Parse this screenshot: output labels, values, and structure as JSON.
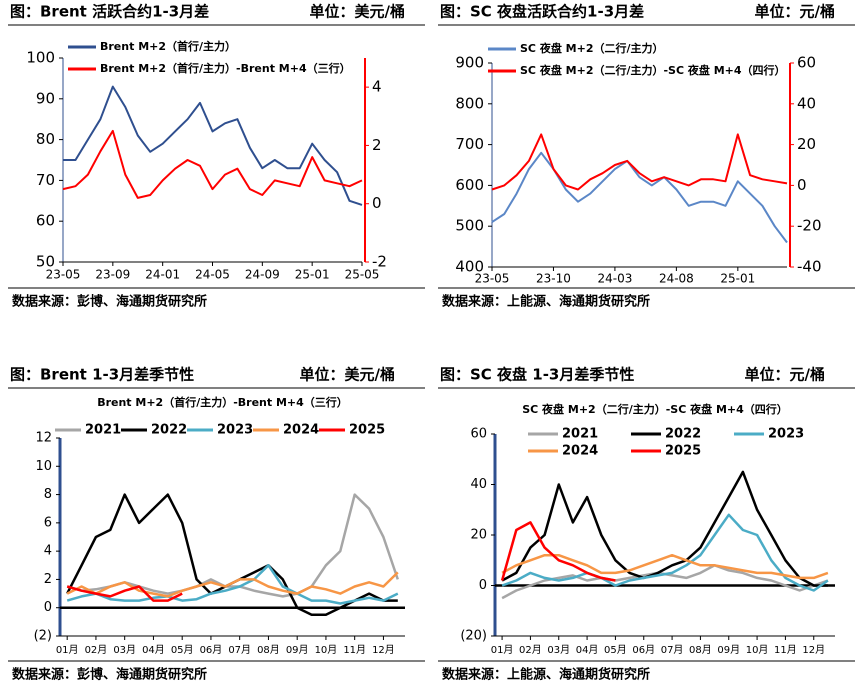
{
  "chart_data": [
    {
      "type": "line",
      "title": "图：Brent 活跃合约1-3月差",
      "unit": "单位：美元/桶",
      "source": "数据来源：彭博、海通期货研究所",
      "categories": [
        "23-05",
        null,
        null,
        null,
        "23-09",
        null,
        null,
        null,
        "24-01",
        null,
        null,
        null,
        "24-05",
        null,
        null,
        null,
        "24-09",
        null,
        null,
        null,
        "25-01",
        null,
        null,
        null,
        "25-05"
      ],
      "ylim": [
        50,
        100
      ],
      "yticks": [
        50,
        60,
        70,
        80,
        90,
        100
      ],
      "y2lim": [
        -2,
        5
      ],
      "y2ticks": [
        -2,
        0,
        2,
        4
      ],
      "series": [
        {
          "name": "Brent M+2（首行/主力）",
          "color": "#2f4f8f",
          "values": [
            75,
            75,
            80,
            85,
            93,
            88,
            81,
            77,
            79,
            82,
            85,
            89,
            82,
            84,
            85,
            78,
            73,
            75,
            73,
            73,
            79,
            75,
            72,
            65,
            64
          ]
        },
        {
          "name": "Brent M+2（首行/主力）-Brent M+4（三行）",
          "color": "#ff0000",
          "axis": "y2",
          "values": [
            0.5,
            0.6,
            1.0,
            1.8,
            2.5,
            1.0,
            0.2,
            0.3,
            0.8,
            1.2,
            1.5,
            1.3,
            0.5,
            1.0,
            1.2,
            0.5,
            0.3,
            0.8,
            0.7,
            0.6,
            1.6,
            0.8,
            0.7,
            0.6,
            0.8
          ]
        }
      ]
    },
    {
      "type": "line",
      "title": "图：SC 夜盘活跃合约1-3月差",
      "unit": "单位：元/桶",
      "source": "数据来源：上能源、海通期货研究所",
      "categories": [
        "23-05",
        null,
        null,
        null,
        null,
        "23-10",
        null,
        null,
        null,
        null,
        "24-03",
        null,
        null,
        null,
        null,
        "24-08",
        null,
        null,
        null,
        null,
        "25-01",
        null,
        null,
        null,
        null
      ],
      "ylim": [
        400,
        900
      ],
      "yticks": [
        400,
        500,
        600,
        700,
        800,
        900
      ],
      "y2lim": [
        -40,
        60
      ],
      "y2ticks": [
        -40,
        -20,
        0,
        20,
        40,
        60
      ],
      "series": [
        {
          "name": "SC 夜盘 M+2（二行/主力）",
          "color": "#5b87c7",
          "values": [
            510,
            530,
            580,
            640,
            680,
            640,
            590,
            560,
            580,
            610,
            640,
            660,
            620,
            600,
            620,
            590,
            550,
            560,
            560,
            550,
            610,
            580,
            550,
            500,
            460
          ]
        },
        {
          "name": "SC 夜盘 M+2（二行/主力）-SC 夜盘 M+4（四行）",
          "color": "#ff0000",
          "axis": "y2",
          "values": [
            -2,
            0,
            5,
            12,
            25,
            8,
            0,
            -2,
            3,
            6,
            10,
            12,
            6,
            2,
            4,
            2,
            0,
            3,
            3,
            2,
            25,
            5,
            3,
            2,
            1
          ]
        }
      ]
    },
    {
      "type": "line",
      "title": "图：Brent 1-3月差季节性",
      "unit": "单位：美元/桶",
      "subtitle": "Brent M+2（首行/主力）-Brent M+4（三行）",
      "source": "数据来源：彭博、海通期货研究所",
      "categories": [
        "01月",
        null,
        "02月",
        null,
        "03月",
        null,
        "04月",
        null,
        "05月",
        null,
        "06月",
        null,
        "07月",
        null,
        "08月",
        null,
        "09月",
        null,
        "10月",
        null,
        "11月",
        null,
        "12月",
        null
      ],
      "ylim": [
        -2,
        12
      ],
      "yticks": [
        {
          "value": -2,
          "label": "(2)"
        },
        0,
        2,
        4,
        6,
        8,
        10,
        12
      ],
      "series": [
        {
          "name": "2021",
          "color": "#a6a6a6",
          "values": [
            1.5,
            1.2,
            1.3,
            1.5,
            1.8,
            1.5,
            1.2,
            1,
            1.2,
            1.5,
            2,
            1.5,
            1.5,
            1.2,
            1.0,
            0.8,
            1.0,
            1.5,
            3,
            4,
            8,
            7,
            5,
            2
          ]
        },
        {
          "name": "2022",
          "color": "#000000",
          "values": [
            1,
            3,
            5,
            5.5,
            8,
            6,
            7,
            8,
            6,
            2,
            1,
            1.5,
            2,
            2.5,
            3,
            2,
            0,
            -0.5,
            -0.5,
            0,
            0.5,
            1,
            0.5,
            0.5
          ]
        },
        {
          "name": "2023",
          "color": "#4bacc6",
          "values": [
            0.5,
            0.8,
            1,
            0.6,
            0.5,
            0.5,
            0.7,
            0.8,
            0.5,
            0.6,
            1,
            1.2,
            1.5,
            2,
            3,
            1.5,
            1,
            0.5,
            0.5,
            0.3,
            0.5,
            0.7,
            0.5,
            1
          ]
        },
        {
          "name": "2024",
          "color": "#f79646",
          "values": [
            1,
            1.5,
            1,
            1.5,
            1.8,
            1.2,
            1,
            0.8,
            1.2,
            1.5,
            1.8,
            1.5,
            2,
            2,
            1.5,
            1.2,
            1,
            1.5,
            1.3,
            1,
            1.5,
            1.8,
            1.5,
            2.5
          ]
        },
        {
          "name": "2025",
          "color": "#ff0000",
          "values": [
            1.5,
            1.2,
            1,
            0.8,
            1.2,
            1.5,
            0.5,
            0.5,
            1,
            null,
            null,
            null,
            null,
            null,
            null,
            null,
            null,
            null,
            null,
            null,
            null,
            null,
            null,
            null
          ]
        }
      ]
    },
    {
      "type": "line",
      "title": "图：SC 夜盘 1-3月差季节性",
      "unit": "单位：元/桶",
      "subtitle": "SC 夜盘 M+2（二行/主力）-SC 夜盘 M+4（四行）",
      "source": "数据来源：上能源、海通期货研究所",
      "categories": [
        "01月",
        null,
        "02月",
        null,
        "03月",
        null,
        "04月",
        null,
        "05月",
        null,
        "06月",
        null,
        "07月",
        null,
        "08月",
        null,
        "09月",
        null,
        "10月",
        null,
        "11月",
        null,
        "12月",
        null
      ],
      "ylim": [
        -20,
        60
      ],
      "yticks": [
        {
          "value": -20,
          "label": "(20)"
        },
        0,
        20,
        40,
        60
      ],
      "series": [
        {
          "name": "2021",
          "color": "#a6a6a6",
          "values": [
            -5,
            -2,
            0,
            2,
            3,
            4,
            2,
            3,
            2,
            3,
            4,
            5,
            4,
            3,
            5,
            8,
            6,
            5,
            3,
            2,
            0,
            -2,
            0,
            2
          ]
        },
        {
          "name": "2022",
          "color": "#000000",
          "values": [
            2,
            5,
            15,
            20,
            40,
            25,
            35,
            20,
            10,
            5,
            3,
            5,
            8,
            10,
            15,
            25,
            35,
            45,
            30,
            20,
            10,
            3,
            0,
            0
          ]
        },
        {
          "name": "2023",
          "color": "#4bacc6",
          "values": [
            0,
            2,
            5,
            3,
            2,
            3,
            5,
            3,
            0,
            2,
            3,
            4,
            5,
            8,
            12,
            20,
            28,
            22,
            20,
            10,
            3,
            0,
            -2,
            2
          ]
        },
        {
          "name": "2024",
          "color": "#f79646",
          "values": [
            5,
            8,
            10,
            12,
            12,
            10,
            8,
            5,
            5,
            6,
            8,
            10,
            12,
            10,
            8,
            8,
            7,
            6,
            5,
            5,
            4,
            3,
            3,
            5
          ]
        },
        {
          "name": "2025",
          "color": "#ff0000",
          "values": [
            2,
            22,
            25,
            15,
            10,
            8,
            5,
            3,
            2,
            null,
            null,
            null,
            null,
            null,
            null,
            null,
            null,
            null,
            null,
            null,
            null,
            null,
            null,
            null
          ]
        }
      ]
    }
  ]
}
